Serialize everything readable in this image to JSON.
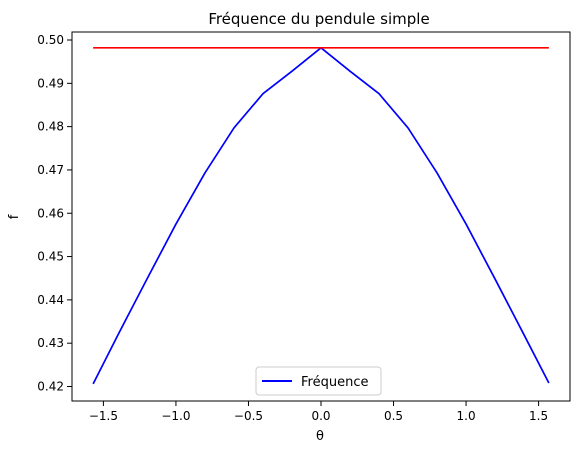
{
  "chart_data": {
    "type": "line",
    "title": "Fréquence du pendule simple",
    "xlabel": "θ",
    "ylabel": "f",
    "xlim": [
      -1.7165,
      1.7165
    ],
    "ylim": [
      0.41665,
      0.50185
    ],
    "xticks": [
      -1.5,
      -1.0,
      -0.5,
      0.0,
      0.5,
      1.0,
      1.5
    ],
    "xtick_labels": [
      "−1.5",
      "−1.0",
      "−0.5",
      "0.0",
      "0.5",
      "1.0",
      "1.5"
    ],
    "yticks": [
      0.42,
      0.43,
      0.44,
      0.45,
      0.46,
      0.47,
      0.48,
      0.49,
      0.5
    ],
    "ytick_labels": [
      "0.42",
      "0.43",
      "0.44",
      "0.45",
      "0.46",
      "0.47",
      "0.48",
      "0.49",
      "0.50"
    ],
    "grid": false,
    "legend": {
      "position": "bottom-center",
      "entries": [
        "Fréquence"
      ]
    },
    "series": [
      {
        "name": "Fréquence",
        "color": "#0000ff",
        "x": [
          -1.5708,
          -1.4,
          -1.2,
          -1.0,
          -0.8,
          -0.6,
          -0.4,
          -0.2,
          0.0,
          0.2,
          0.4,
          0.6,
          0.8,
          1.0,
          1.2,
          1.4,
          1.5708
        ],
        "y": [
          0.4206,
          0.4319,
          0.4448,
          0.4575,
          0.4693,
          0.4797,
          0.4876,
          0.4928,
          0.4982,
          0.4928,
          0.4876,
          0.4797,
          0.4693,
          0.4575,
          0.4448,
          0.4319,
          0.4208
        ]
      },
      {
        "color": "#ff0000",
        "x": [
          -1.5708,
          1.5708
        ],
        "y": [
          0.4982,
          0.4982
        ]
      }
    ]
  }
}
